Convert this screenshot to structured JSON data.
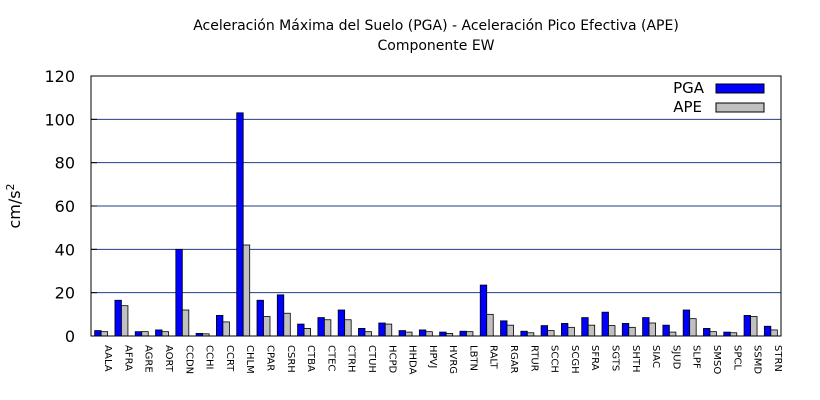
{
  "chart_data": {
    "type": "bar",
    "title": "Aceleración Máxima del Suelo (PGA) -  Aceleración Pico Efectiva (APE)",
    "subtitle": "Componente EW",
    "xlabel": "",
    "ylabel": "cm/s",
    "ylabel_sup": "2",
    "ylim": [
      0,
      120
    ],
    "yticks": [
      0,
      20,
      40,
      60,
      80,
      100,
      120
    ],
    "grid": "horizontal",
    "legend_position": "top-right",
    "colors": {
      "PGA": "#0000ff",
      "APE": "#c0c0c0"
    },
    "categories": [
      "AALA",
      "AFRA",
      "AGRE",
      "AORT",
      "CCDN",
      "CCHI",
      "CCRT",
      "CHLM",
      "CPAR",
      "CSRH",
      "CTBA",
      "CTEC",
      "CTRH",
      "CTUH",
      "HCPD",
      "HHDA",
      "HPVJ",
      "HVRG",
      "LBTN",
      "RALT",
      "RGAR",
      "RTUR",
      "SCCH",
      "SCGH",
      "SFRA",
      "SGTS",
      "SHTH",
      "SIAC",
      "SJUD",
      "SLPF",
      "SMSO",
      "SPCL",
      "SSMD",
      "STRN"
    ],
    "series": [
      {
        "name": "PGA",
        "values": [
          2.5,
          16.5,
          2,
          2.8,
          40,
          1.2,
          9.5,
          103,
          16.5,
          19,
          5.5,
          8.5,
          12,
          3.5,
          6,
          2.5,
          2.8,
          1.8,
          2.2,
          23.5,
          7,
          2.2,
          4.8,
          5.8,
          8.5,
          11,
          5.8,
          8.5,
          5,
          12,
          3.5,
          1.8,
          9.5,
          4.5
        ]
      },
      {
        "name": "APE",
        "values": [
          2,
          14,
          2,
          2,
          12,
          1,
          6.5,
          42,
          9,
          10.5,
          3.5,
          7.5,
          7.5,
          2,
          5.5,
          1.8,
          2,
          1.2,
          2,
          10,
          5,
          1.5,
          2.5,
          4,
          5,
          4.8,
          4,
          6,
          1.8,
          8,
          2,
          1.5,
          9,
          2.8
        ]
      }
    ]
  }
}
